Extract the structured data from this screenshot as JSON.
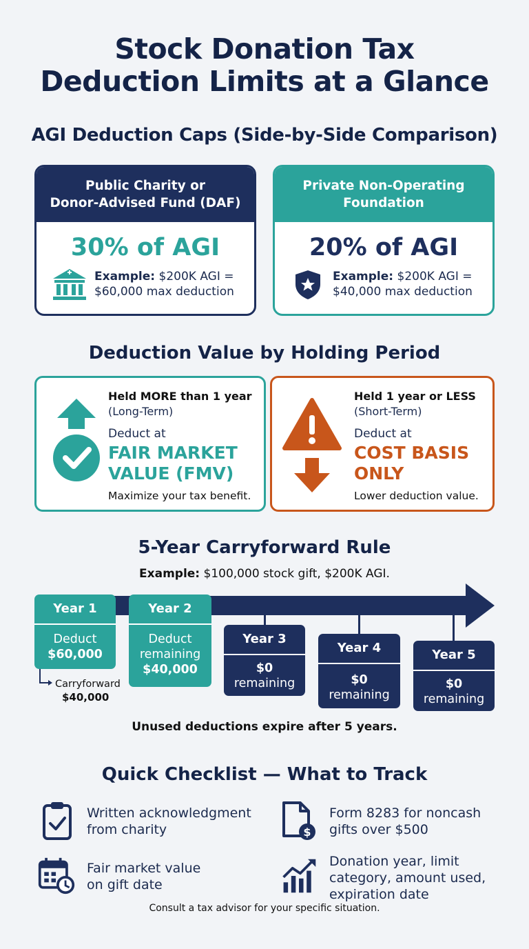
{
  "title_line1": "Stock Donation Tax",
  "title_line2": "Deduction Limits at a Glance",
  "agi": {
    "heading": "AGI Deduction Caps (Side-by-Side Comparison)",
    "public": {
      "title_line1": "Public Charity or",
      "title_line2": "Donor-Advised Fund (DAF)",
      "pct": "30% of AGI",
      "example_label": "Example:",
      "example_rest": " $200K AGI =",
      "example_line2": "$60,000 max deduction",
      "icon": "bank-icon"
    },
    "private": {
      "title_line1": "Private Non-Operating",
      "title_line2": "Foundation",
      "pct": "20% of AGI",
      "example_label": "Example:",
      "example_rest": " $200K AGI =",
      "example_line2": "$40,000 max deduction",
      "icon": "shield-star-icon"
    }
  },
  "holding": {
    "heading": "Deduction Value by Holding Period",
    "long": {
      "title": "Held MORE than 1 year",
      "subtitle": "(Long-Term)",
      "deduct": "Deduct at",
      "big_line1": "FAIR MARKET",
      "big_line2": "VALUE (FMV)",
      "note": "Maximize your tax benefit.",
      "icon": "arrow-up-check-icon"
    },
    "short": {
      "title": "Held 1 year or LESS",
      "subtitle": "(Short-Term)",
      "deduct": "Deduct at",
      "big_line1": "COST BASIS",
      "big_line2": "ONLY",
      "note": "Lower deduction value.",
      "icon": "warning-arrow-down-icon"
    }
  },
  "carryforward": {
    "heading": "5-Year Carryforward Rule",
    "example_label": "Example:",
    "example_rest": " $100,000 stock gift, $200K AGI.",
    "years": [
      {
        "label": "Year 1",
        "line1": "Deduct",
        "line2": "",
        "amount": "$60,000"
      },
      {
        "label": "Year 2",
        "line1": "Deduct",
        "line2": "remaining",
        "amount": "$40,000"
      },
      {
        "label": "Year 3",
        "amount": "$0",
        "line1": "remaining"
      },
      {
        "label": "Year 4",
        "amount": "$0",
        "line1": "remaining"
      },
      {
        "label": "Year 5",
        "amount": "$0",
        "line1": "remaining"
      }
    ],
    "carry_label": "Carryforward",
    "carry_amount": "$40,000",
    "expire_note": "Unused deductions expire after 5 years."
  },
  "checklist": {
    "heading": "Quick Checklist — What to Track",
    "items": [
      {
        "line1": "Written acknowledgment",
        "line2": "from charity",
        "icon": "clipboard-check-icon"
      },
      {
        "line1": "Form 8283 for noncash",
        "line2": "gifts over $500",
        "icon": "document-dollar-icon"
      },
      {
        "line1": "Fair market value",
        "line2": "on gift date",
        "icon": "calendar-clock-icon"
      },
      {
        "line1": "Donation year, limit",
        "line2": "category, amount used,",
        "line3": "expiration date",
        "icon": "chart-up-icon"
      }
    ]
  },
  "footer": "Consult a tax advisor for your specific situation.",
  "colors": {
    "navy": "#1e2f5d",
    "teal": "#2ba39b",
    "orange": "#c8561b",
    "background": "#f2f4f7"
  }
}
